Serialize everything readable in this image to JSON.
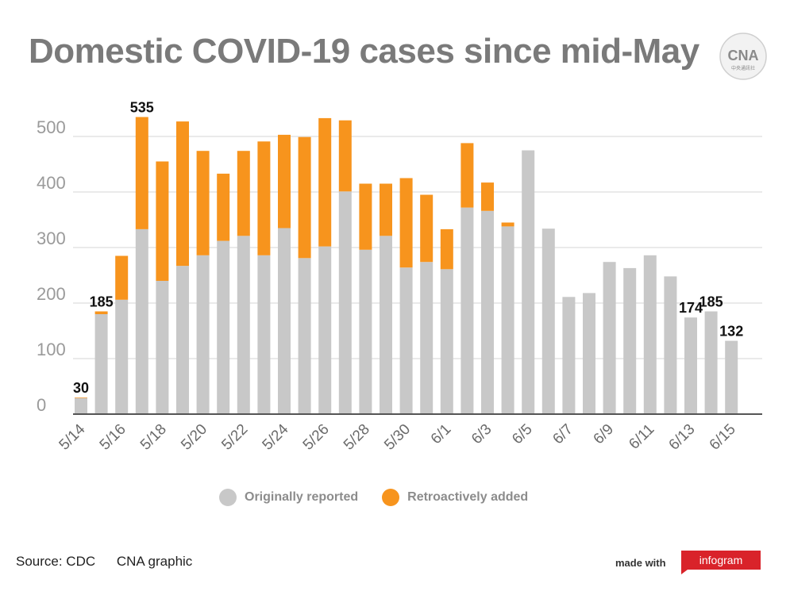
{
  "header": {
    "title": "Domestic COVID-19 cases since mid-May",
    "logo_text": "CNA",
    "logo_subtext": "中央通訊社"
  },
  "legend": {
    "items": [
      {
        "label": "Originally reported",
        "color": "#c8c8c8"
      },
      {
        "label": "Retroactively added",
        "color": "#f7941d"
      }
    ]
  },
  "footer": {
    "source": "Source: CDC",
    "credit": "CNA graphic",
    "made_with": "made with",
    "brand": "infogram",
    "brand_color": "#d9232a"
  },
  "chart_data": {
    "type": "bar",
    "stacked": true,
    "categories": [
      "5/14",
      "5/15",
      "5/16",
      "5/17",
      "5/18",
      "5/19",
      "5/20",
      "5/21",
      "5/22",
      "5/23",
      "5/24",
      "5/25",
      "5/26",
      "5/27",
      "5/28",
      "5/29",
      "5/30",
      "5/31",
      "6/1",
      "6/2",
      "6/3",
      "6/4",
      "6/5",
      "6/6",
      "6/7",
      "6/8",
      "6/9",
      "6/10",
      "6/11",
      "6/12",
      "6/13",
      "6/14",
      "6/15"
    ],
    "tick_labels": [
      "5/14",
      "5/16",
      "5/18",
      "5/20",
      "5/22",
      "5/24",
      "5/26",
      "5/28",
      "5/30",
      "6/1",
      "6/3",
      "6/5",
      "6/7",
      "6/9",
      "6/11",
      "6/13",
      "6/15"
    ],
    "series": [
      {
        "name": "Originally reported",
        "color": "#c8c8c8",
        "values": [
          29,
          180,
          206,
          333,
          240,
          267,
          286,
          312,
          321,
          286,
          335,
          281,
          302,
          401,
          296,
          321,
          264,
          274,
          261,
          372,
          366,
          338,
          475,
          334,
          211,
          218,
          274,
          263,
          286,
          248,
          174,
          185,
          132
        ]
      },
      {
        "name": "Retroactively added",
        "color": "#f7941d",
        "values": [
          1,
          5,
          79,
          202,
          215,
          260,
          188,
          121,
          153,
          205,
          168,
          218,
          231,
          128,
          119,
          94,
          161,
          121,
          72,
          116,
          51,
          7,
          0,
          0,
          0,
          0,
          0,
          0,
          0,
          0,
          0,
          0,
          0
        ]
      }
    ],
    "data_labels": [
      {
        "index": 0,
        "text": "30"
      },
      {
        "index": 1,
        "text": "185"
      },
      {
        "index": 3,
        "text": "535"
      },
      {
        "index": 30,
        "text": "174"
      },
      {
        "index": 31,
        "text": "185"
      },
      {
        "index": 32,
        "text": "132"
      }
    ],
    "y_ticks": [
      0,
      100,
      200,
      300,
      400,
      500
    ],
    "y_tick_labels": [
      "0",
      "100",
      "200",
      "300",
      "400",
      "500"
    ],
    "ylim": [
      0,
      560
    ],
    "grid": true,
    "legend_position": "bottom"
  }
}
